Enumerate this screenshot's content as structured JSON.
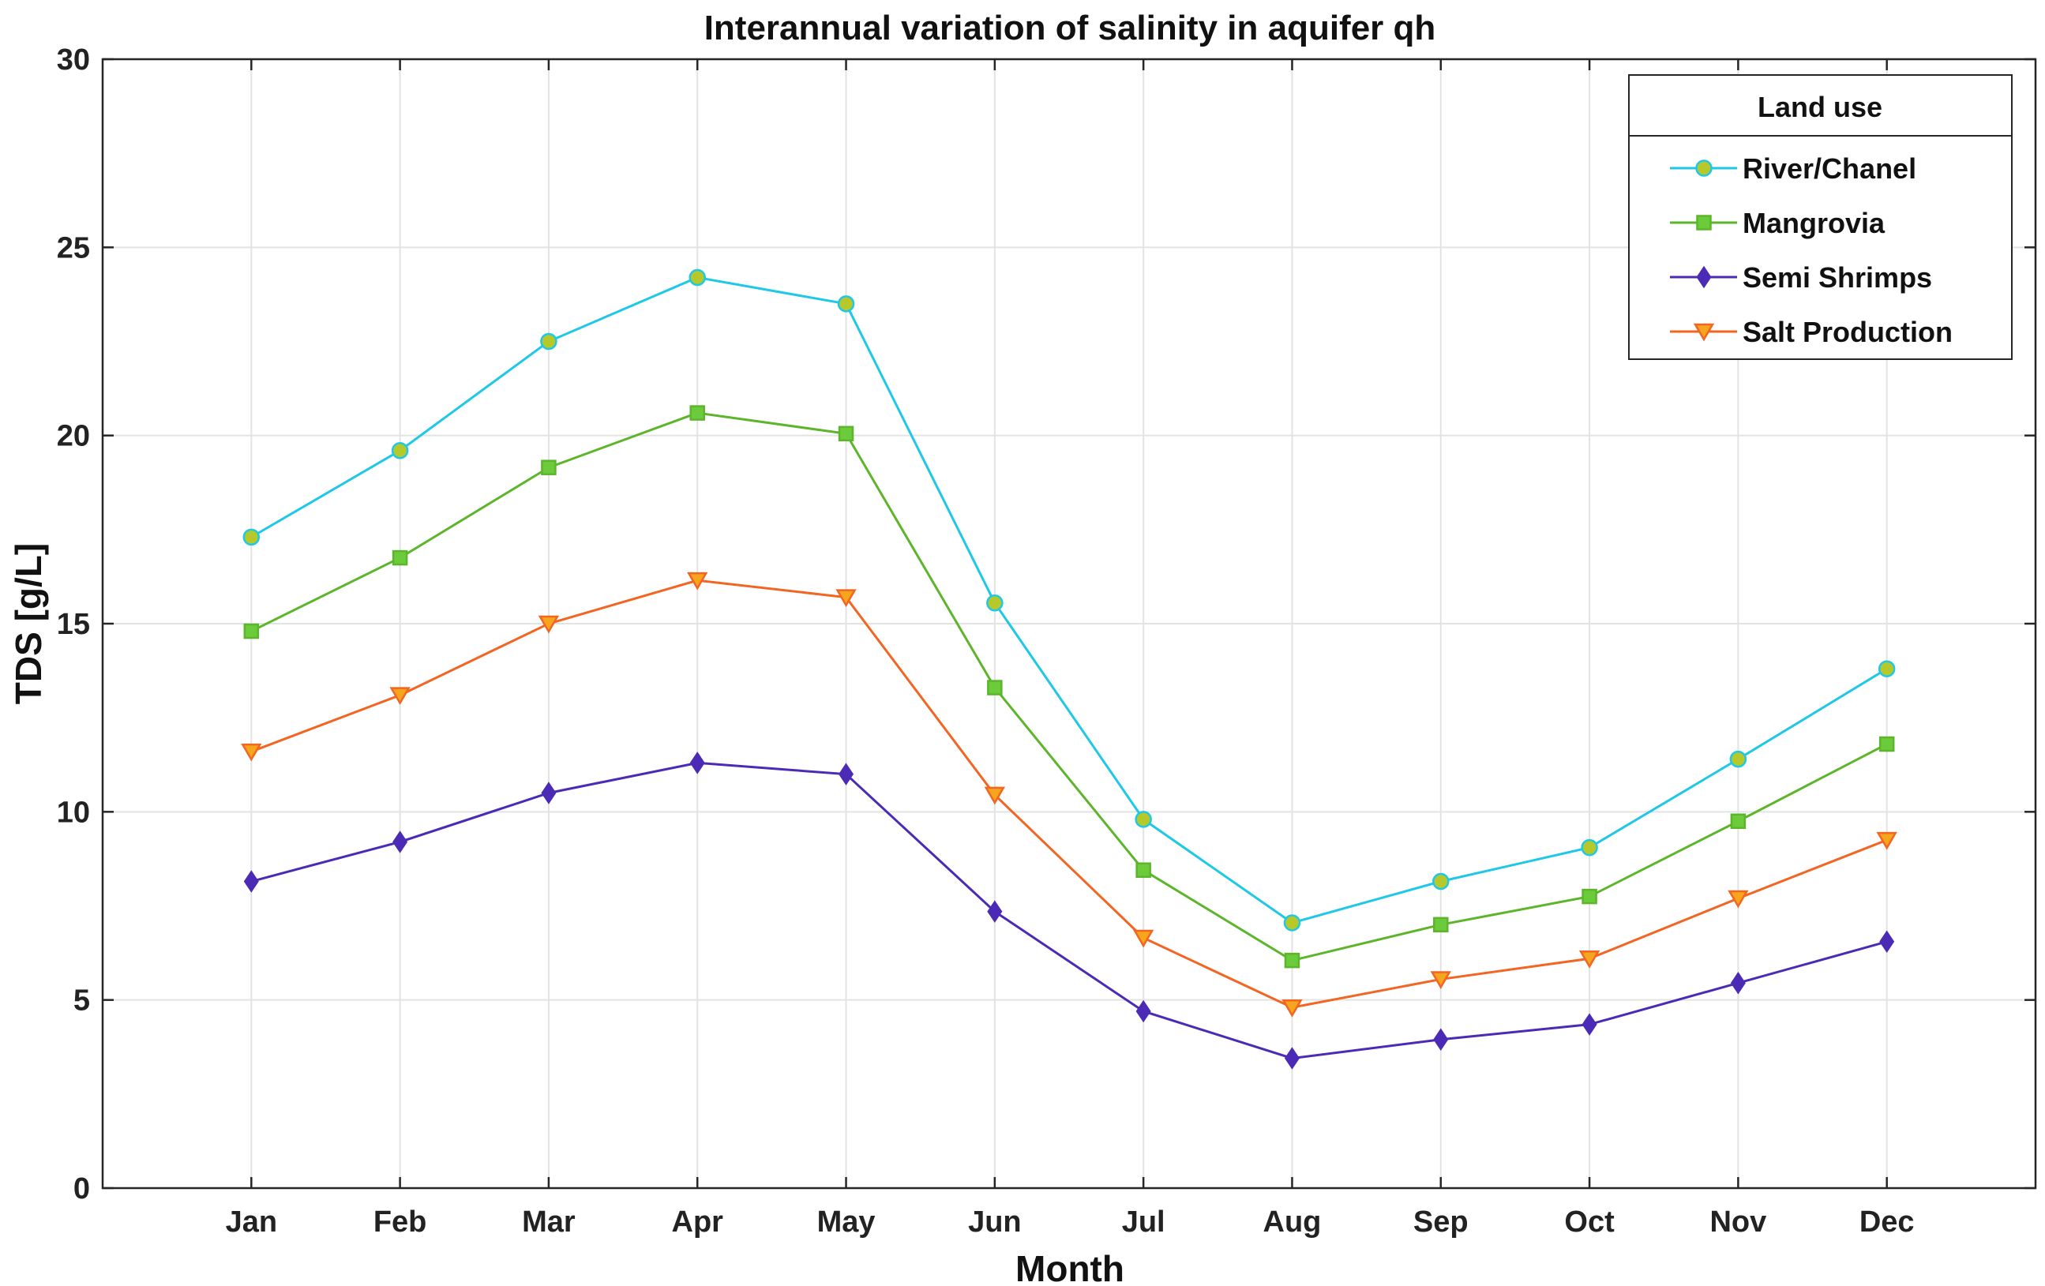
{
  "chart_data": {
    "type": "line",
    "title": "Interannual variation of salinity in aquifer qh",
    "xlabel": "Month",
    "ylabel": "TDS [g/L]",
    "categories": [
      "Jan",
      "Feb",
      "Mar",
      "Apr",
      "May",
      "Jun",
      "Jul",
      "Aug",
      "Sep",
      "Oct",
      "Nov",
      "Dec"
    ],
    "ylim": [
      0,
      30
    ],
    "yticks": [
      0,
      5,
      10,
      15,
      20,
      25,
      30
    ],
    "grid": true,
    "legend": {
      "title": "Land use",
      "position": "top-right"
    },
    "series": [
      {
        "name": "River/Chanel",
        "color": "#1EC8E6",
        "fill": "#B7C92A",
        "marker": "circle",
        "values": [
          17.3,
          19.6,
          22.5,
          24.2,
          23.5,
          15.55,
          9.8,
          7.05,
          8.15,
          9.05,
          11.4,
          13.8
        ]
      },
      {
        "name": "Mangrovia",
        "color": "#5DB52C",
        "fill": "#6CCB3A",
        "marker": "square",
        "values": [
          14.8,
          16.75,
          19.15,
          20.6,
          20.05,
          13.3,
          8.45,
          6.05,
          7.0,
          7.75,
          9.75,
          11.8
        ]
      },
      {
        "name": "Semi Shrimps",
        "color": "#4B2BB5",
        "fill": "#4B2BB5",
        "marker": "diamond",
        "values": [
          8.15,
          9.2,
          10.5,
          11.3,
          11.0,
          7.35,
          4.7,
          3.45,
          3.95,
          4.35,
          5.45,
          6.55
        ]
      },
      {
        "name": "Salt Production",
        "color": "#F26522",
        "fill": "#F7A51C",
        "marker": "triangle-down",
        "values": [
          11.6,
          13.1,
          15.0,
          16.15,
          15.7,
          10.45,
          6.65,
          4.8,
          5.55,
          6.1,
          7.7,
          9.25
        ]
      }
    ]
  }
}
